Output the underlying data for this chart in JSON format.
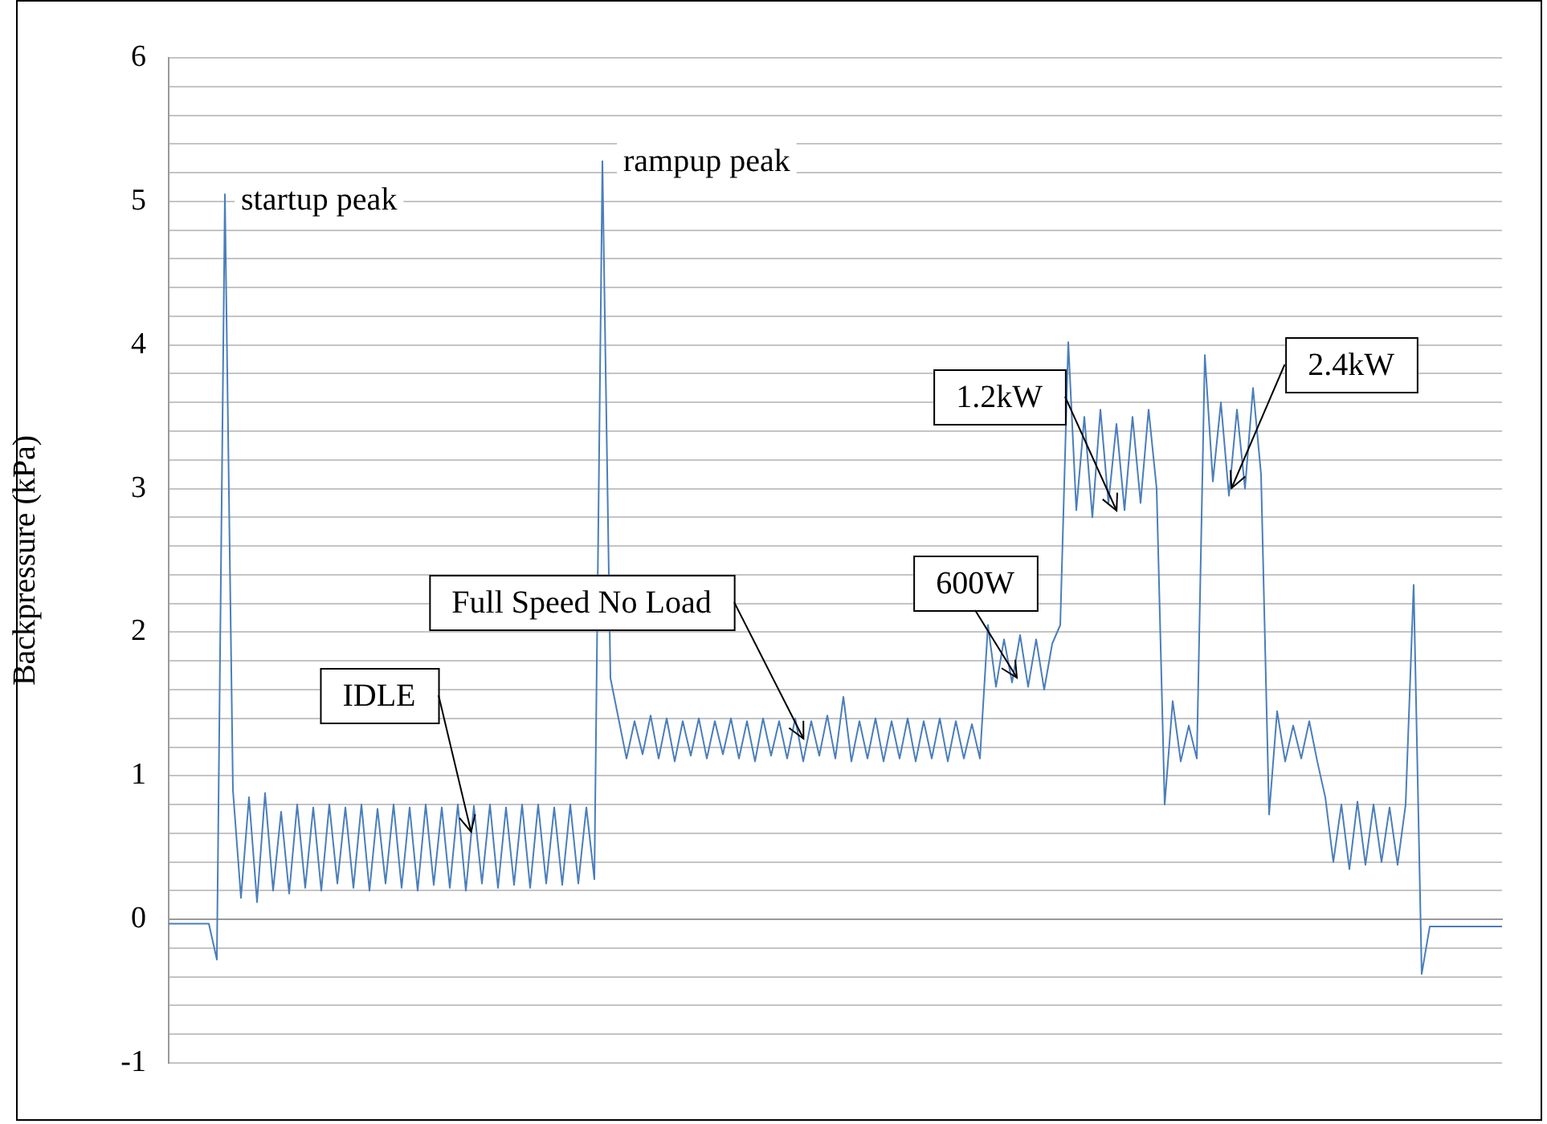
{
  "chart_data": {
    "type": "line",
    "ylabel": "Backpressure (kPa)",
    "categories": [
      null,
      null,
      null,
      null,
      null,
      null,
      null,
      null,
      null,
      null,
      null,
      null,
      null,
      null,
      null,
      null,
      null,
      null,
      null,
      null,
      null,
      null,
      null,
      null,
      null,
      null,
      null,
      null,
      null,
      null,
      null,
      null,
      null,
      null,
      null,
      null,
      null,
      null,
      null,
      null,
      null,
      null,
      null,
      null,
      null,
      null,
      null,
      null,
      null,
      null,
      null,
      null,
      null,
      null,
      null,
      null,
      null,
      null,
      null,
      null,
      null,
      null,
      null,
      null,
      null,
      null,
      null,
      null,
      null,
      null,
      null,
      null,
      null,
      null,
      null,
      null,
      null,
      null,
      null,
      null,
      null,
      null,
      null,
      null,
      null,
      null,
      null,
      null,
      null,
      null,
      null,
      null,
      null,
      null,
      null,
      null,
      null,
      null,
      null,
      null,
      null,
      null,
      null,
      null,
      null,
      null,
      null,
      null,
      null,
      null,
      null,
      null,
      null,
      null,
      null,
      null,
      null,
      null,
      null,
      null,
      null,
      null,
      null,
      null,
      null,
      null,
      null,
      null,
      null,
      null,
      null,
      null,
      null,
      null,
      null,
      null,
      null,
      null,
      null,
      null,
      null,
      null,
      null,
      null,
      null,
      null,
      null,
      null,
      null,
      null,
      null,
      null,
      null,
      null,
      null,
      null,
      null,
      null,
      null,
      null,
      null,
      null,
      null,
      null,
      null,
      null,
      null
    ],
    "series": [
      {
        "color": "#4a7ebb",
        "values": [
          -0.03,
          -0.03,
          -0.03,
          -0.03,
          -0.03,
          -0.03,
          -0.28,
          5.05,
          0.9,
          0.15,
          0.85,
          0.12,
          0.88,
          0.2,
          0.75,
          0.18,
          0.8,
          0.22,
          0.78,
          0.2,
          0.8,
          0.25,
          0.78,
          0.22,
          0.8,
          0.2,
          0.77,
          0.25,
          0.8,
          0.22,
          0.78,
          0.2,
          0.8,
          0.24,
          0.78,
          0.22,
          0.8,
          0.2,
          0.79,
          0.25,
          0.8,
          0.22,
          0.78,
          0.24,
          0.8,
          0.22,
          0.8,
          0.25,
          0.78,
          0.24,
          0.8,
          0.25,
          0.78,
          0.28,
          5.28,
          1.68,
          1.4,
          1.12,
          1.38,
          1.15,
          1.42,
          1.12,
          1.4,
          1.1,
          1.38,
          1.14,
          1.4,
          1.12,
          1.38,
          1.15,
          1.4,
          1.12,
          1.38,
          1.1,
          1.4,
          1.14,
          1.38,
          1.12,
          1.4,
          1.1,
          1.38,
          1.14,
          1.42,
          1.12,
          1.55,
          1.1,
          1.38,
          1.12,
          1.4,
          1.1,
          1.38,
          1.12,
          1.4,
          1.1,
          1.38,
          1.12,
          1.4,
          1.1,
          1.38,
          1.12,
          1.36,
          1.12,
          2.05,
          1.62,
          1.95,
          1.65,
          1.98,
          1.62,
          1.95,
          1.6,
          1.92,
          2.05,
          4.02,
          2.85,
          3.5,
          2.8,
          3.55,
          2.9,
          3.45,
          2.85,
          3.5,
          2.9,
          3.55,
          3.0,
          0.8,
          1.52,
          1.1,
          1.35,
          1.12,
          3.93,
          3.05,
          3.6,
          2.95,
          3.55,
          3.0,
          3.7,
          3.1,
          0.73,
          1.45,
          1.1,
          1.35,
          1.12,
          1.38,
          1.1,
          0.85,
          0.4,
          0.8,
          0.35,
          0.82,
          0.38,
          0.8,
          0.4,
          0.78,
          0.38,
          0.8,
          2.33,
          -0.38,
          -0.05,
          -0.05,
          -0.05,
          -0.05,
          -0.05,
          -0.05,
          -0.05,
          -0.05,
          -0.05,
          -0.05
        ]
      }
    ],
    "ylim": [
      -1,
      6
    ],
    "yticks": [
      -1,
      {
        "value": -0.8,
        "label": null
      },
      {
        "value": -0.6,
        "label": null
      },
      {
        "value": -0.4,
        "label": null
      },
      {
        "value": -0.2,
        "label": null
      },
      0,
      {
        "value": 0.2,
        "label": null
      },
      {
        "value": 0.4,
        "label": null
      },
      {
        "value": 0.6,
        "label": null
      },
      {
        "value": 0.8,
        "label": null
      },
      1,
      {
        "value": 1.2,
        "label": null
      },
      {
        "value": 1.4,
        "label": null
      },
      {
        "value": 1.6,
        "label": null
      },
      {
        "value": 1.8,
        "label": null
      },
      2,
      {
        "value": 2.2,
        "label": null
      },
      {
        "value": 2.4,
        "label": null
      },
      {
        "value": 2.6,
        "label": null
      },
      {
        "value": 2.8,
        "label": null
      },
      3,
      {
        "value": 3.2,
        "label": null
      },
      {
        "value": 3.4,
        "label": null
      },
      {
        "value": 3.6,
        "label": null
      },
      {
        "value": 3.8,
        "label": null
      },
      4,
      {
        "value": 4.2,
        "label": null
      },
      {
        "value": 4.4,
        "label": null
      },
      {
        "value": 4.6,
        "label": null
      },
      {
        "value": 4.8,
        "label": null
      },
      5,
      {
        "value": 5.2,
        "label": null
      },
      {
        "value": 5.4,
        "label": null
      },
      {
        "value": 5.6,
        "label": null
      },
      {
        "value": 5.8,
        "label": null
      },
      6
    ],
    "grid": "y",
    "marker": "none",
    "line_style": "solid",
    "legend": false,
    "tick_labels": "y",
    "annotations": [
      "startup peak",
      "rampup peak",
      "IDLE",
      "Full Speed No Load",
      "600W",
      "1.2kW",
      "2.4kW"
    ]
  }
}
